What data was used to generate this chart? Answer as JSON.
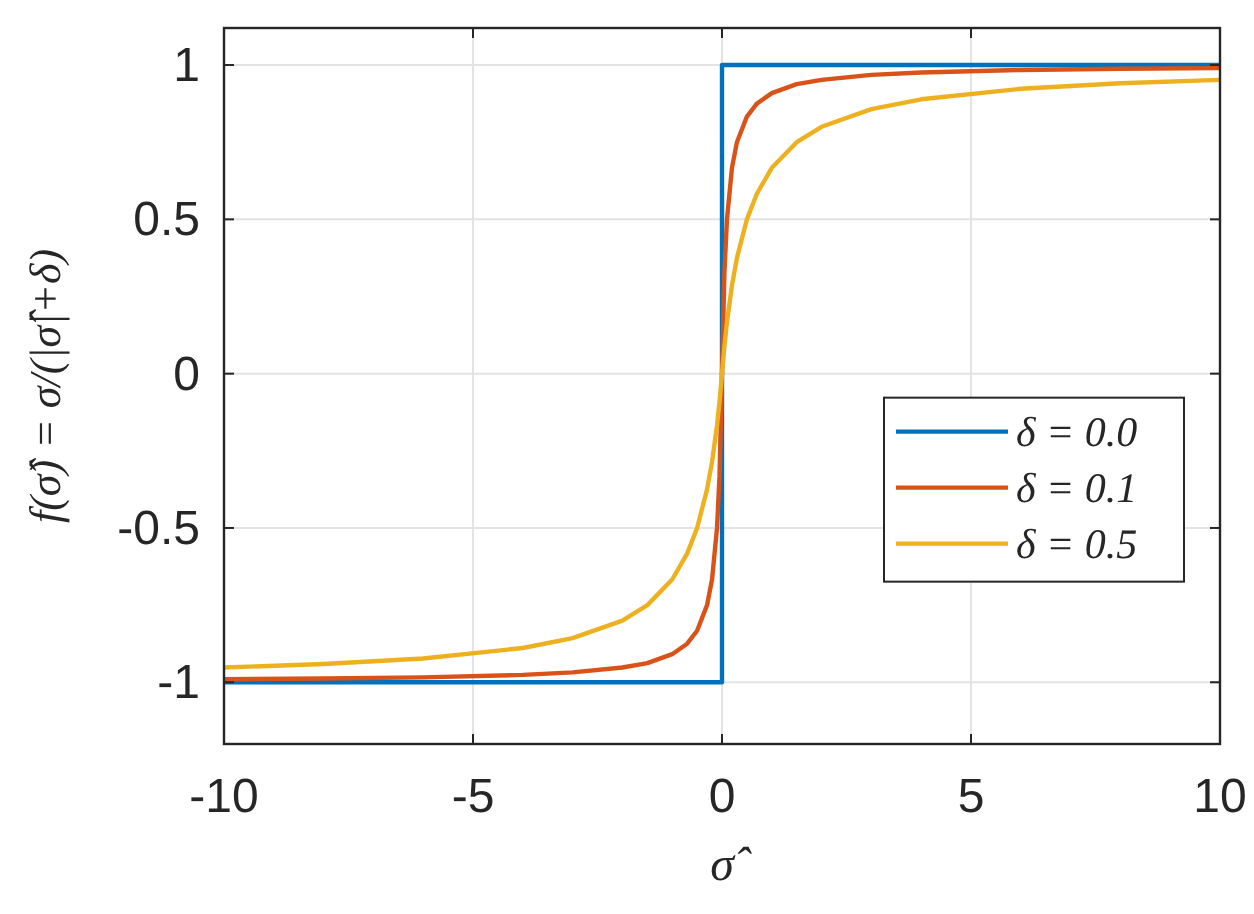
{
  "chart_data": {
    "type": "line",
    "xlabel": "σ̂",
    "ylabel": "f(σ̂) = σ/(|σ̂|+δ)",
    "xlim": [
      -10,
      10
    ],
    "ylim": [
      -1.2,
      1.12
    ],
    "xticks": [
      -10,
      -5,
      0,
      5,
      10
    ],
    "yticks": [
      -1,
      -0.5,
      0,
      0.5,
      1
    ],
    "grid": true,
    "legend": "bottom right",
    "marker": "none",
    "line_style": "solid",
    "series": [
      {
        "name": "δ = 0.0",
        "color": "#0072bd",
        "x": [
          -10,
          0,
          0,
          10
        ],
        "values": [
          -1,
          -1,
          1,
          1
        ]
      },
      {
        "name": "δ = 0.1",
        "color": "#d95319",
        "x": [
          -10,
          -8,
          -6,
          -4,
          -3,
          -2,
          -1.5,
          -1,
          -0.7,
          -0.5,
          -0.3,
          -0.2,
          -0.1,
          -0.05,
          0,
          0.05,
          0.1,
          0.2,
          0.3,
          0.5,
          0.7,
          1,
          1.5,
          2,
          3,
          4,
          6,
          8,
          10
        ],
        "values": [
          -0.99,
          -0.988,
          -0.984,
          -0.976,
          -0.968,
          -0.952,
          -0.938,
          -0.909,
          -0.875,
          -0.833,
          -0.75,
          -0.667,
          -0.5,
          -0.333,
          0,
          0.333,
          0.5,
          0.667,
          0.75,
          0.833,
          0.875,
          0.909,
          0.938,
          0.952,
          0.968,
          0.976,
          0.984,
          0.988,
          0.99
        ]
      },
      {
        "name": "δ = 0.5",
        "color": "#edb120",
        "x": [
          -10,
          -8,
          -6,
          -4,
          -3,
          -2,
          -1.5,
          -1,
          -0.7,
          -0.5,
          -0.3,
          -0.2,
          -0.1,
          -0.05,
          0,
          0.05,
          0.1,
          0.2,
          0.3,
          0.5,
          0.7,
          1,
          1.5,
          2,
          3,
          4,
          6,
          8,
          10
        ],
        "values": [
          -0.952,
          -0.941,
          -0.923,
          -0.889,
          -0.857,
          -0.8,
          -0.75,
          -0.667,
          -0.583,
          -0.5,
          -0.375,
          -0.286,
          -0.167,
          -0.091,
          0,
          0.091,
          0.167,
          0.286,
          0.375,
          0.5,
          0.583,
          0.667,
          0.75,
          0.8,
          0.857,
          0.889,
          0.923,
          0.941,
          0.952
        ]
      }
    ]
  }
}
